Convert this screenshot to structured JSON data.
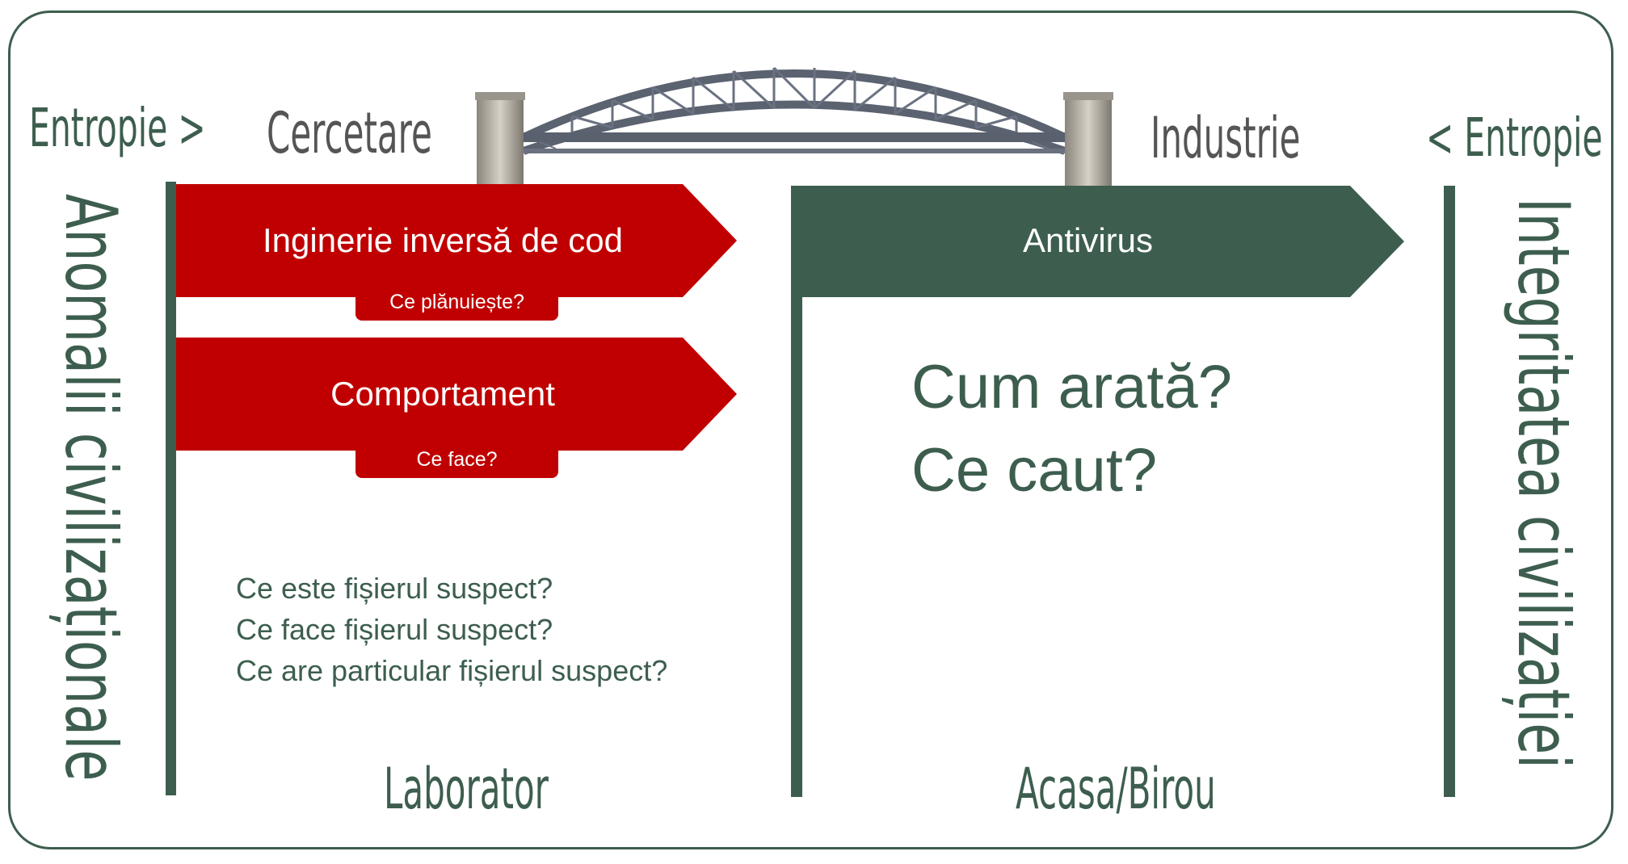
{
  "header": {
    "entropy_left": "Entropie >",
    "research": "Cercetare",
    "industry": "Industrie",
    "entropy_right": "< Entropie"
  },
  "side_labels": {
    "left": "Anomalii civilizaționale",
    "right": "Integritatea civilizației"
  },
  "arrows": [
    {
      "label": "Inginerie inversă de cod",
      "tag": "Ce plănuiește?",
      "color": "#c00000"
    },
    {
      "label": "Comportament",
      "tag": "Ce face?",
      "color": "#c00000"
    },
    {
      "label": "Antivirus",
      "color": "#3d5e4e"
    }
  ],
  "lab_questions": [
    "Ce este fișierul suspect?",
    "Ce face fișierul suspect?",
    "Ce are particular fișierul suspect?"
  ],
  "industry_questions": [
    "Cum arată?",
    "Ce caut?"
  ],
  "footer": {
    "lab": "Laborator",
    "home": "Acasa/Birou"
  },
  "illustration": {
    "icon": "arch-bridge-icon"
  },
  "colors": {
    "green": "#3d5e4e",
    "red": "#c00000",
    "gray_text": "#555555"
  }
}
